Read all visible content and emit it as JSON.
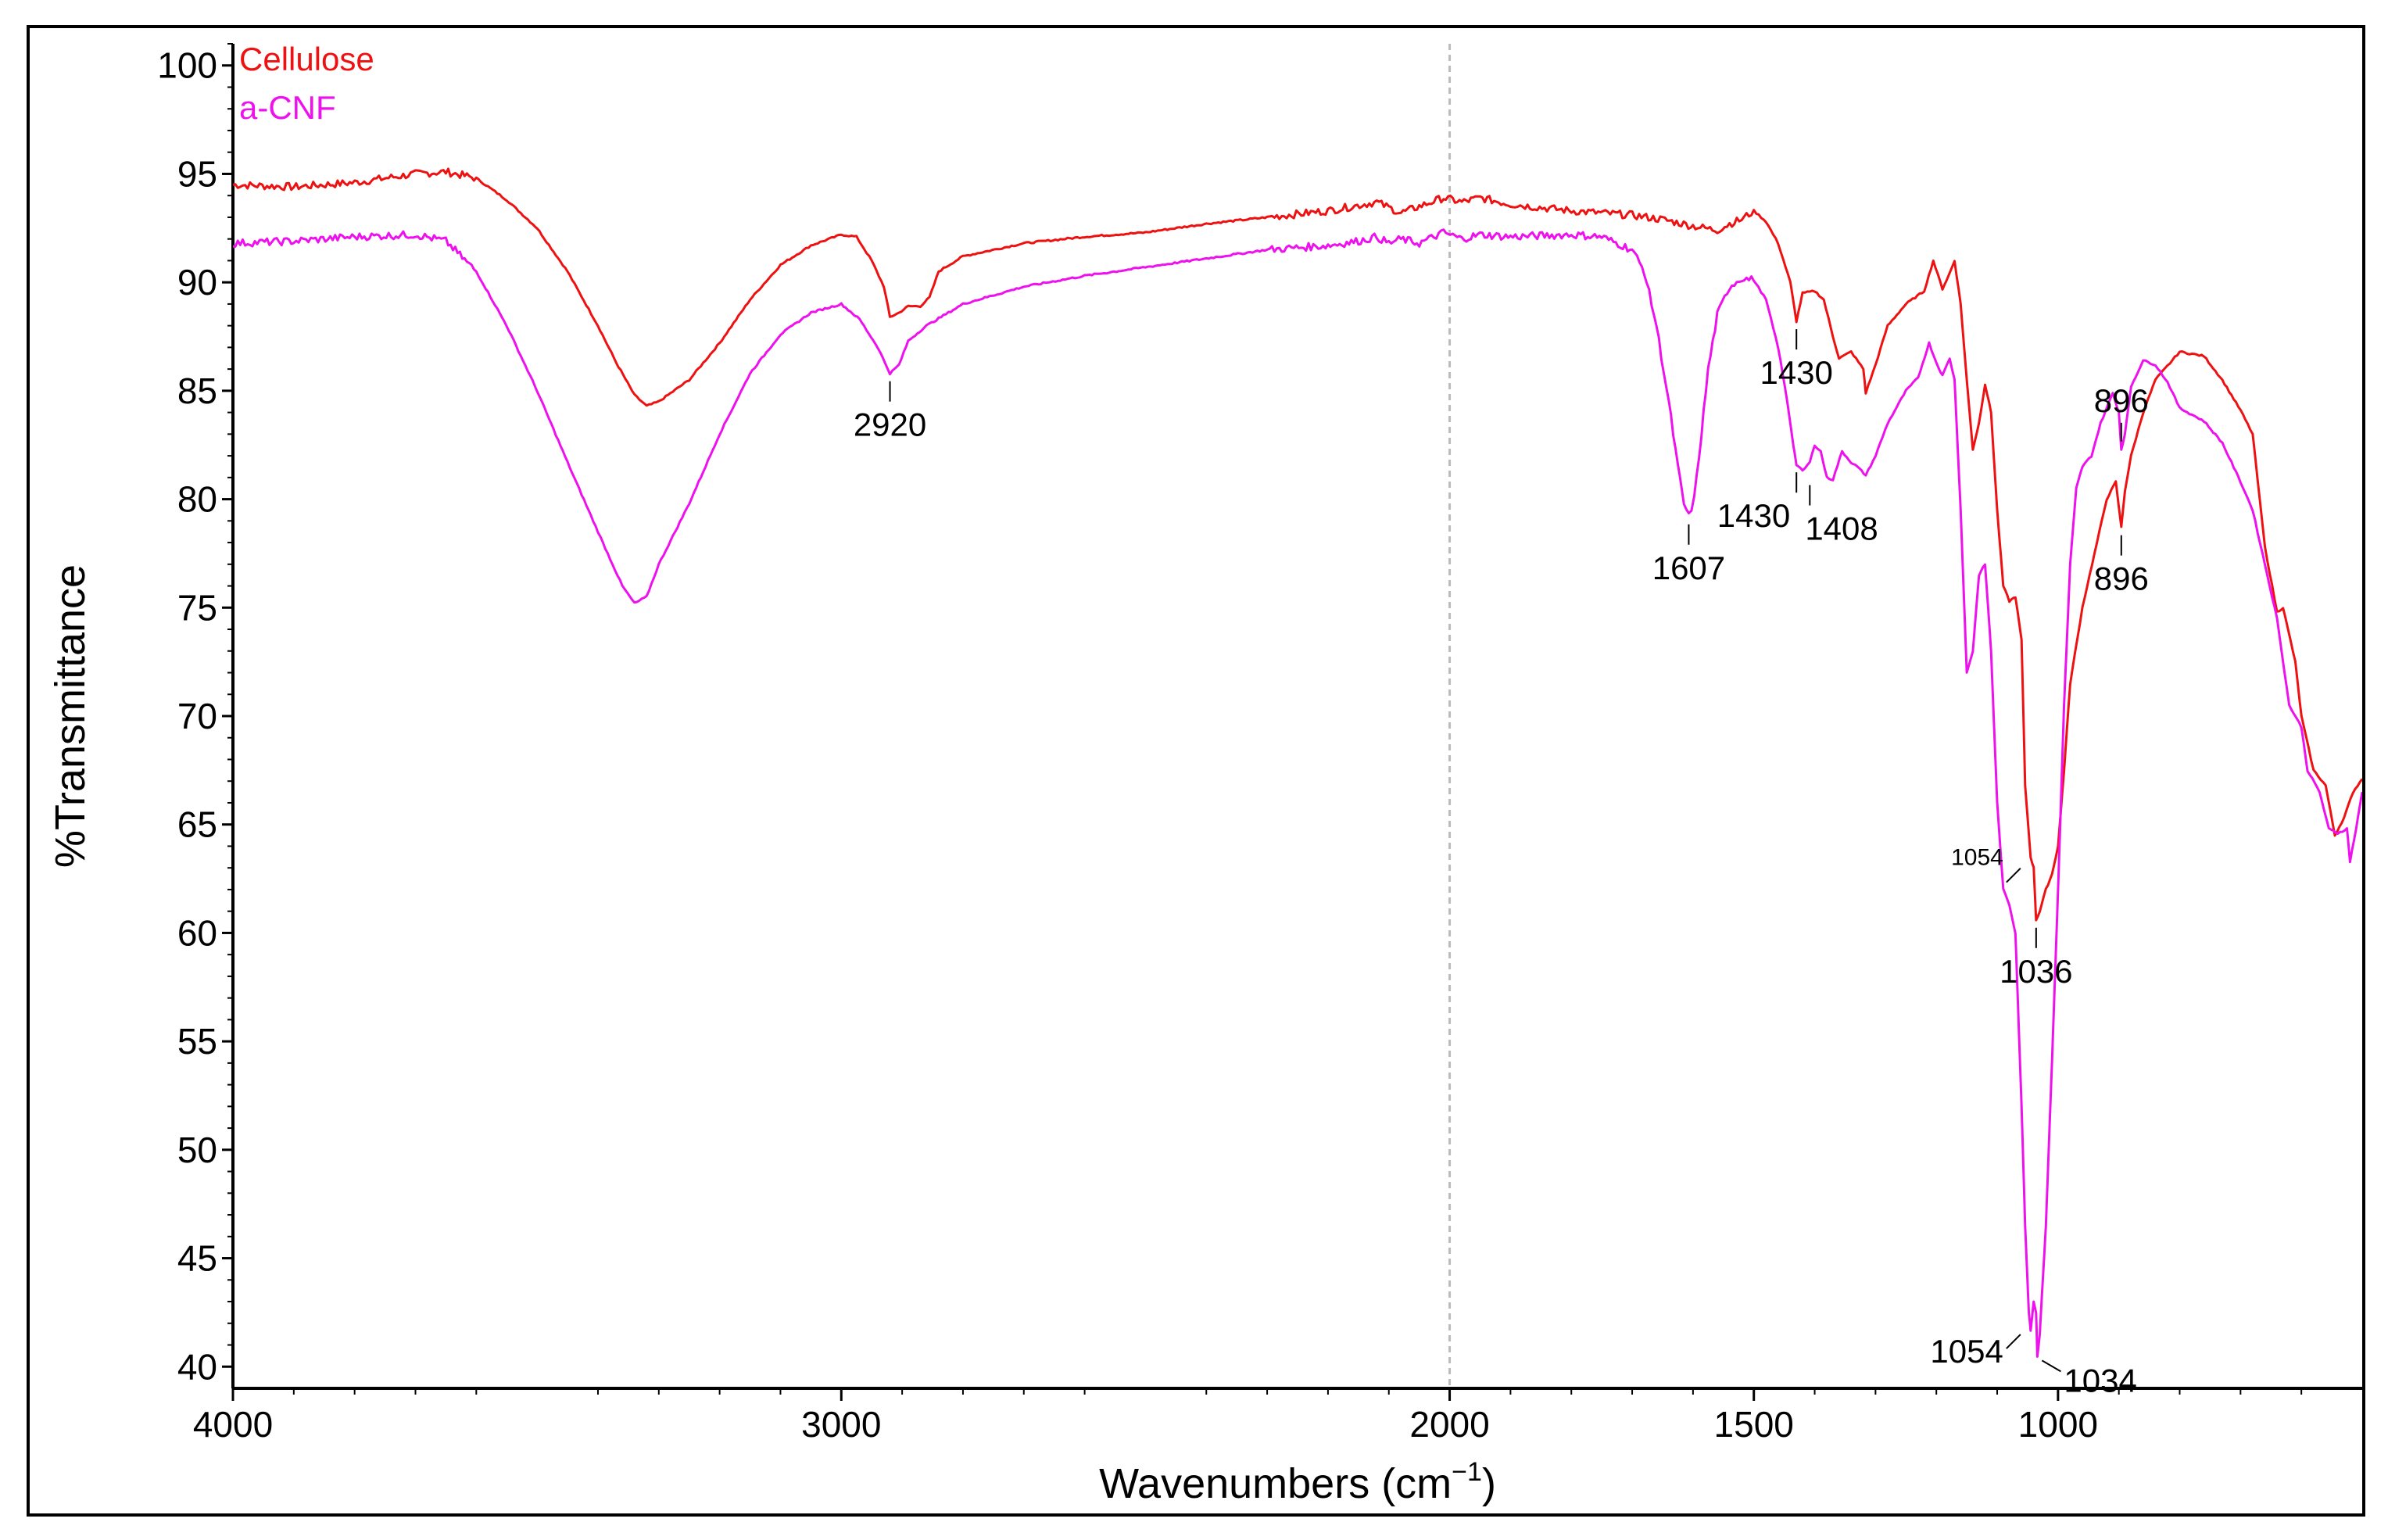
{
  "colors": {
    "cellulose": "#ee1111",
    "acnf": "#ee11ee",
    "axis": "#000000",
    "center_line": "#bbbbbb"
  },
  "chart_data": {
    "type": "line",
    "xlabel": "Wavenumbers (cm",
    "xlabel_sup": "−1",
    "xlabel_close": ")",
    "ylabel": "%Transmittance",
    "xlim": [
      4000,
      500
    ],
    "ylim": [
      39,
      101
    ],
    "xticks": [
      "4000",
      "3000",
      "2000",
      "1000"
    ],
    "xtick_values": [
      4000,
      3000,
      2000,
      1500,
      1000
    ],
    "xtick_labels": [
      "4000",
      "3000",
      "2000",
      "1500",
      "1000"
    ],
    "ytick_values": [
      40,
      45,
      50,
      55,
      60,
      65,
      70,
      75,
      80,
      85,
      90,
      95,
      100
    ],
    "ytick_labels": [
      "40",
      "45",
      "50",
      "55",
      "60",
      "65",
      "70",
      "75",
      "80",
      "85",
      "90",
      "95",
      "100"
    ],
    "grid": false,
    "legend_position": "top-left",
    "series": [
      {
        "name": "Cellulose",
        "color": "#ee1111",
        "points": [
          [
            4000,
            94.5
          ],
          [
            3900,
            94.4
          ],
          [
            3800,
            94.6
          ],
          [
            3700,
            95.0
          ],
          [
            3650,
            95.1
          ],
          [
            3600,
            94.8
          ],
          [
            3550,
            93.8
          ],
          [
            3500,
            92.5
          ],
          [
            3450,
            90.5
          ],
          [
            3400,
            88.0
          ],
          [
            3370,
            86.3
          ],
          [
            3340,
            84.8
          ],
          [
            3320,
            84.3
          ],
          [
            3300,
            84.5
          ],
          [
            3250,
            85.5
          ],
          [
            3200,
            87.2
          ],
          [
            3150,
            89.2
          ],
          [
            3100,
            90.8
          ],
          [
            3050,
            91.7
          ],
          [
            3000,
            92.2
          ],
          [
            2975,
            92.1
          ],
          [
            2950,
            91.0
          ],
          [
            2930,
            89.8
          ],
          [
            2920,
            88.4
          ],
          [
            2905,
            88.6
          ],
          [
            2890,
            88.9
          ],
          [
            2870,
            88.9
          ],
          [
            2855,
            89.3
          ],
          [
            2840,
            90.5
          ],
          [
            2800,
            91.2
          ],
          [
            2700,
            91.8
          ],
          [
            2600,
            92.1
          ],
          [
            2500,
            92.3
          ],
          [
            2400,
            92.7
          ],
          [
            2300,
            93.0
          ],
          [
            2200,
            93.3
          ],
          [
            2120,
            93.7
          ],
          [
            2080,
            93.2
          ],
          [
            2050,
            93.5
          ],
          [
            2010,
            93.9
          ],
          [
            1980,
            93.7
          ],
          [
            1950,
            93.9
          ],
          [
            1900,
            93.6
          ],
          [
            1800,
            93.3
          ],
          [
            1700,
            93.1
          ],
          [
            1650,
            92.9
          ],
          [
            1600,
            92.6
          ],
          [
            1560,
            92.4
          ],
          [
            1540,
            92.7
          ],
          [
            1520,
            92.9
          ],
          [
            1500,
            93.3
          ],
          [
            1480,
            92.8
          ],
          [
            1460,
            91.8
          ],
          [
            1440,
            90.0
          ],
          [
            1430,
            88.2
          ],
          [
            1420,
            89.5
          ],
          [
            1400,
            89.6
          ],
          [
            1385,
            89.2
          ],
          [
            1370,
            87.5
          ],
          [
            1360,
            86.5
          ],
          [
            1340,
            86.8
          ],
          [
            1320,
            86.0
          ],
          [
            1316,
            84.9
          ],
          [
            1300,
            86.2
          ],
          [
            1280,
            88.0
          ],
          [
            1250,
            89.0
          ],
          [
            1220,
            89.6
          ],
          [
            1205,
            91.0
          ],
          [
            1190,
            89.7
          ],
          [
            1180,
            90.3
          ],
          [
            1170,
            91.0
          ],
          [
            1160,
            89.0
          ],
          [
            1150,
            85.5
          ],
          [
            1140,
            82.3
          ],
          [
            1130,
            83.5
          ],
          [
            1120,
            85.3
          ],
          [
            1110,
            84.0
          ],
          [
            1100,
            79.5
          ],
          [
            1090,
            76.0
          ],
          [
            1080,
            75.3
          ],
          [
            1070,
            75.5
          ],
          [
            1060,
            73.5
          ],
          [
            1054,
            66.8
          ],
          [
            1045,
            63.5
          ],
          [
            1040,
            63.0
          ],
          [
            1036,
            60.6
          ],
          [
            1030,
            61.0
          ],
          [
            1020,
            62.0
          ],
          [
            1010,
            62.7
          ],
          [
            1000,
            64.0
          ],
          [
            990,
            67.5
          ],
          [
            980,
            71.5
          ],
          [
            960,
            75.0
          ],
          [
            940,
            77.5
          ],
          [
            920,
            80.0
          ],
          [
            905,
            80.8
          ],
          [
            896,
            78.7
          ],
          [
            890,
            80.4
          ],
          [
            880,
            82.0
          ],
          [
            860,
            84.0
          ],
          [
            840,
            85.5
          ],
          [
            800,
            86.8
          ],
          [
            760,
            86.6
          ],
          [
            730,
            85.5
          ],
          [
            700,
            84.1
          ],
          [
            680,
            83.0
          ],
          [
            660,
            77.8
          ],
          [
            640,
            74.8
          ],
          [
            630,
            75.0
          ],
          [
            610,
            72.5
          ],
          [
            600,
            70.0
          ],
          [
            580,
            67.5
          ],
          [
            560,
            66.8
          ],
          [
            545,
            64.5
          ],
          [
            530,
            65.3
          ],
          [
            515,
            66.5
          ],
          [
            500,
            67.1
          ]
        ]
      },
      {
        "name": "a-CNF",
        "color": "#ee11ee",
        "points": [
          [
            4000,
            91.8
          ],
          [
            3900,
            91.9
          ],
          [
            3800,
            92.1
          ],
          [
            3700,
            92.2
          ],
          [
            3650,
            91.9
          ],
          [
            3600,
            90.5
          ],
          [
            3550,
            88.0
          ],
          [
            3500,
            85.0
          ],
          [
            3450,
            81.7
          ],
          [
            3400,
            78.5
          ],
          [
            3360,
            76.0
          ],
          [
            3340,
            75.2
          ],
          [
            3320,
            75.5
          ],
          [
            3300,
            77.0
          ],
          [
            3250,
            79.8
          ],
          [
            3200,
            83.0
          ],
          [
            3150,
            85.8
          ],
          [
            3100,
            87.6
          ],
          [
            3050,
            88.6
          ],
          [
            3000,
            89.0
          ],
          [
            2970,
            88.3
          ],
          [
            2940,
            87.0
          ],
          [
            2920,
            85.8
          ],
          [
            2905,
            86.2
          ],
          [
            2890,
            87.3
          ],
          [
            2860,
            88.0
          ],
          [
            2800,
            89.0
          ],
          [
            2700,
            89.8
          ],
          [
            2600,
            90.3
          ],
          [
            2500,
            90.7
          ],
          [
            2400,
            91.1
          ],
          [
            2300,
            91.5
          ],
          [
            2200,
            91.7
          ],
          [
            2150,
            91.9
          ],
          [
            2120,
            92.1
          ],
          [
            2100,
            91.8
          ],
          [
            2080,
            92.0
          ],
          [
            2050,
            91.8
          ],
          [
            2010,
            92.3
          ],
          [
            1980,
            92.0
          ],
          [
            1950,
            92.2
          ],
          [
            1900,
            92.1
          ],
          [
            1800,
            92.2
          ],
          [
            1750,
            92.1
          ],
          [
            1700,
            91.5
          ],
          [
            1680,
            90.5
          ],
          [
            1660,
            88.0
          ],
          [
            1640,
            84.5
          ],
          [
            1625,
            81.5
          ],
          [
            1615,
            79.8
          ],
          [
            1607,
            79.2
          ],
          [
            1598,
            80.0
          ],
          [
            1590,
            82.0
          ],
          [
            1575,
            86.0
          ],
          [
            1560,
            88.5
          ],
          [
            1540,
            89.8
          ],
          [
            1520,
            90.2
          ],
          [
            1500,
            90.1
          ],
          [
            1480,
            89.2
          ],
          [
            1460,
            87.0
          ],
          [
            1445,
            84.5
          ],
          [
            1435,
            82.5
          ],
          [
            1430,
            81.6
          ],
          [
            1420,
            81.3
          ],
          [
            1408,
            81.7
          ],
          [
            1400,
            82.5
          ],
          [
            1390,
            82.2
          ],
          [
            1380,
            81.0
          ],
          [
            1370,
            80.9
          ],
          [
            1355,
            82.2
          ],
          [
            1340,
            81.7
          ],
          [
            1330,
            81.5
          ],
          [
            1316,
            81.1
          ],
          [
            1300,
            82.0
          ],
          [
            1280,
            83.5
          ],
          [
            1250,
            85.0
          ],
          [
            1230,
            85.6
          ],
          [
            1212,
            87.2
          ],
          [
            1200,
            86.3
          ],
          [
            1190,
            85.7
          ],
          [
            1178,
            86.5
          ],
          [
            1170,
            85.5
          ],
          [
            1160,
            79.5
          ],
          [
            1150,
            72.0
          ],
          [
            1140,
            73.0
          ],
          [
            1130,
            76.5
          ],
          [
            1120,
            77.0
          ],
          [
            1110,
            73.0
          ],
          [
            1100,
            66.0
          ],
          [
            1090,
            62.0
          ],
          [
            1080,
            61.3
          ],
          [
            1070,
            60.0
          ],
          [
            1060,
            52.0
          ],
          [
            1054,
            46.5
          ],
          [
            1048,
            42.5
          ],
          [
            1045,
            41.7
          ],
          [
            1040,
            43.0
          ],
          [
            1036,
            42.5
          ],
          [
            1034,
            40.5
          ],
          [
            1030,
            41.5
          ],
          [
            1020,
            46.5
          ],
          [
            1010,
            54.0
          ],
          [
            1000,
            62.0
          ],
          [
            990,
            70.5
          ],
          [
            980,
            77.0
          ],
          [
            970,
            80.5
          ],
          [
            960,
            81.5
          ],
          [
            945,
            82.0
          ],
          [
            930,
            83.5
          ],
          [
            910,
            84.9
          ],
          [
            900,
            84.0
          ],
          [
            896,
            82.3
          ],
          [
            890,
            83.0
          ],
          [
            880,
            85.2
          ],
          [
            860,
            86.4
          ],
          [
            840,
            86.2
          ],
          [
            820,
            85.4
          ],
          [
            800,
            84.2
          ],
          [
            760,
            83.6
          ],
          [
            730,
            82.6
          ],
          [
            700,
            80.8
          ],
          [
            680,
            79.5
          ],
          [
            660,
            77.0
          ],
          [
            640,
            74.5
          ],
          [
            620,
            70.5
          ],
          [
            600,
            69.5
          ],
          [
            590,
            67.5
          ],
          [
            570,
            66.5
          ],
          [
            555,
            64.8
          ],
          [
            540,
            64.6
          ],
          [
            525,
            64.8
          ],
          [
            520,
            63.3
          ],
          [
            510,
            64.8
          ],
          [
            500,
            66.5
          ]
        ]
      }
    ],
    "annotations": [
      {
        "text": "2920",
        "x": 2920,
        "y": 85.8,
        "series": 1,
        "pos": "below"
      },
      {
        "text": "1430",
        "x": 1430,
        "y": 88.2,
        "series": 0,
        "pos": "below"
      },
      {
        "text": "1607",
        "x": 1607,
        "y": 79.2,
        "series": 1,
        "pos": "below"
      },
      {
        "text": "1430",
        "x": 1430,
        "y": 81.6,
        "series": 1,
        "pos": "below-left"
      },
      {
        "text": "1408",
        "x": 1408,
        "y": 81.3,
        "series": 1,
        "pos": "below-right"
      },
      {
        "text": "896",
        "x": 896,
        "y": 82.3,
        "series": 1,
        "pos": "above"
      },
      {
        "text": "896",
        "x": 896,
        "y": 78.7,
        "series": 0,
        "pos": "below"
      },
      {
        "text": "1054",
        "x": 1054,
        "y": 63.2,
        "series": 0,
        "pos": "left",
        "small": true
      },
      {
        "text": "1036",
        "x": 1036,
        "y": 60.6,
        "series": 0,
        "pos": "below"
      },
      {
        "text": "1054",
        "x": 1054,
        "y": 41.7,
        "series": 1,
        "pos": "left"
      },
      {
        "text": "1034",
        "x": 1034,
        "y": 40.5,
        "series": 1,
        "pos": "right"
      }
    ]
  }
}
